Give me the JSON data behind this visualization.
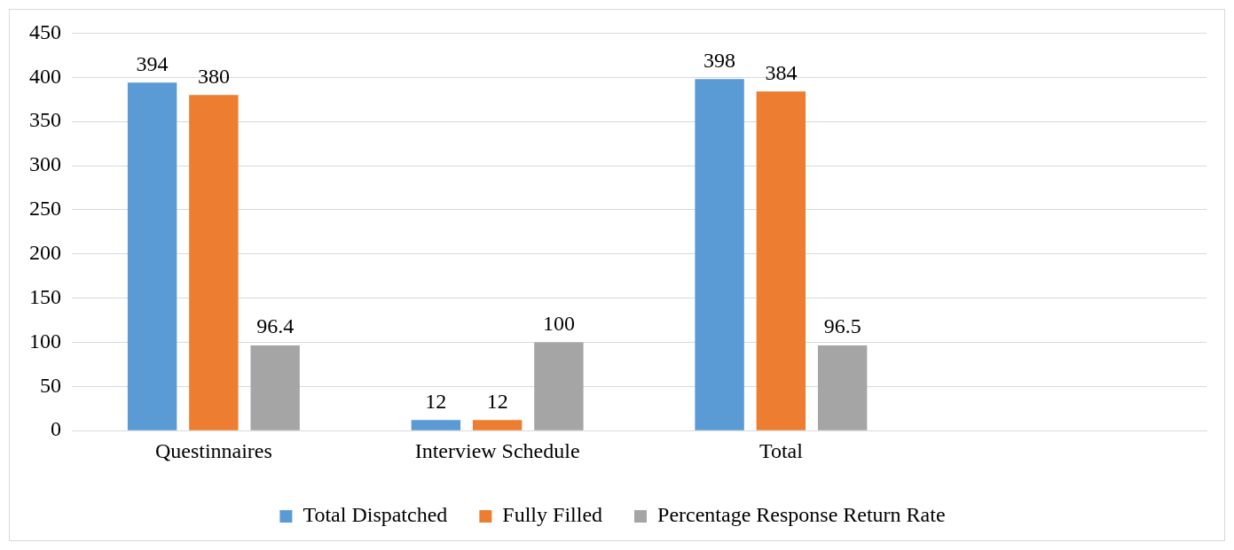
{
  "chart_data": {
    "type": "bar",
    "categories": [
      "Questinnaires",
      "Interview Schedule",
      "Total",
      null
    ],
    "series": [
      {
        "name": "Total Dispatched",
        "color": "#5b9bd5",
        "values": [
          394,
          12,
          398,
          null
        ]
      },
      {
        "name": "Fully Filled",
        "color": "#ed7d31",
        "values": [
          380,
          12,
          384,
          null
        ]
      },
      {
        "name": "Percentage Response Return Rate",
        "color": "#a5a5a5",
        "values": [
          96.4,
          100,
          96.5,
          null
        ]
      }
    ],
    "ylim": [
      0,
      450
    ],
    "yticks": [
      0,
      50,
      100,
      150,
      200,
      250,
      300,
      350,
      400,
      450
    ],
    "grid": "y",
    "legend": "bottom",
    "data_labels": true
  }
}
